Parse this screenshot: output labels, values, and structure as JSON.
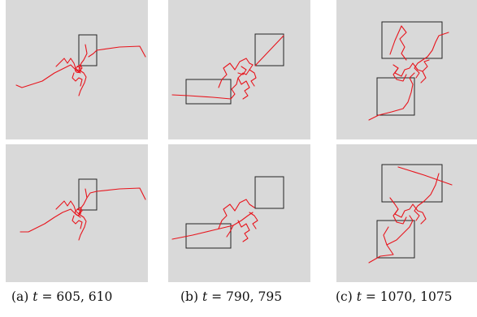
{
  "figure": {
    "colors": {
      "panel_bg": "#d9d9d9",
      "trace": "#e8141c",
      "box": "#222222"
    },
    "captions": [
      {
        "label": "(a)",
        "var": "t",
        "eq": " = ",
        "value": "605, 610"
      },
      {
        "label": "(b)",
        "var": "t",
        "eq": " = ",
        "value": "790, 795"
      },
      {
        "label": "(c)",
        "var": "t",
        "eq": " = ",
        "value": "1070, 1075"
      }
    ]
  }
}
